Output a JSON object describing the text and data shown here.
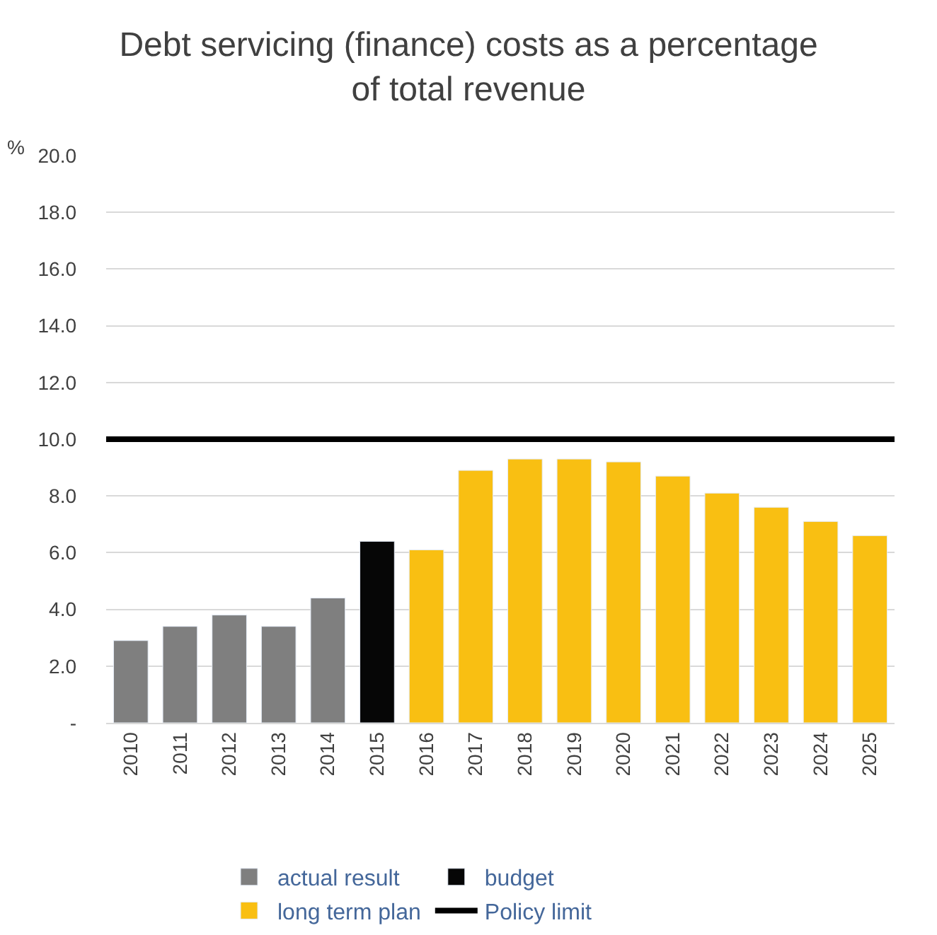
{
  "chart_data": {
    "type": "bar",
    "title": "Debt servicing (finance) costs as a percentage of total revenue",
    "ylabel": "%",
    "categories": [
      "2010",
      "2011",
      "2012",
      "2013",
      "2014",
      "2015",
      "2016",
      "2017",
      "2018",
      "2019",
      "2020",
      "2021",
      "2022",
      "2023",
      "2024",
      "2025"
    ],
    "series": [
      {
        "name": "actual result",
        "color": "#7f7f7f",
        "values": [
          2.9,
          3.4,
          3.8,
          3.4,
          4.4,
          null,
          null,
          null,
          null,
          null,
          null,
          null,
          null,
          null,
          null,
          null
        ]
      },
      {
        "name": "budget",
        "color": "#060606",
        "values": [
          null,
          null,
          null,
          null,
          null,
          6.4,
          null,
          null,
          null,
          null,
          null,
          null,
          null,
          null,
          null,
          null
        ]
      },
      {
        "name": "long term plan",
        "color": "#f9bf12",
        "values": [
          null,
          null,
          null,
          null,
          null,
          null,
          6.1,
          8.9,
          9.3,
          9.3,
          9.2,
          8.7,
          8.1,
          7.6,
          7.1,
          6.6
        ]
      }
    ],
    "ylim": [
      0,
      20
    ],
    "yticks": [
      {
        "value": 0,
        "label": "-"
      },
      {
        "value": 2,
        "label": "2.0"
      },
      {
        "value": 4,
        "label": "4.0"
      },
      {
        "value": 6,
        "label": "6.0"
      },
      {
        "value": 8,
        "label": "8.0"
      },
      {
        "value": 10,
        "label": "10.0"
      },
      {
        "value": 12,
        "label": "12.0"
      },
      {
        "value": 14,
        "label": "14.0"
      },
      {
        "value": 16,
        "label": "16.0"
      },
      {
        "value": 18,
        "label": "18.0"
      },
      {
        "value": 20,
        "label": "20.0"
      }
    ],
    "ref_lines": [
      {
        "axis": "y",
        "value": 10,
        "label": "Policy limit",
        "color": "#000000",
        "line_style": "solid"
      }
    ],
    "grid": "y",
    "legend": "bottom"
  }
}
